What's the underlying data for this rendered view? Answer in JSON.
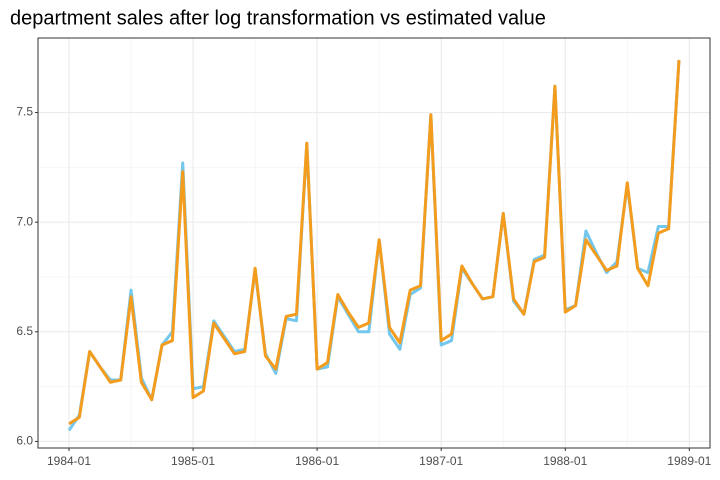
{
  "chart_data": {
    "type": "line",
    "title": "department sales after log transformation vs estimated value",
    "x": [
      "1984-01",
      "1984-02",
      "1984-03",
      "1984-04",
      "1984-05",
      "1984-06",
      "1984-07",
      "1984-08",
      "1984-09",
      "1984-10",
      "1984-11",
      "1984-12",
      "1985-01",
      "1985-02",
      "1985-03",
      "1985-04",
      "1985-05",
      "1985-06",
      "1985-07",
      "1985-08",
      "1985-09",
      "1985-10",
      "1985-11",
      "1985-12",
      "1986-01",
      "1986-02",
      "1986-03",
      "1986-04",
      "1986-05",
      "1986-06",
      "1986-07",
      "1986-08",
      "1986-09",
      "1986-10",
      "1986-11",
      "1986-12",
      "1987-01",
      "1987-02",
      "1987-03",
      "1987-04",
      "1987-05",
      "1987-06",
      "1987-07",
      "1987-08",
      "1987-09",
      "1987-10",
      "1987-11",
      "1987-12",
      "1988-01",
      "1988-02",
      "1988-03",
      "1988-04",
      "1988-05",
      "1988-06",
      "1988-07",
      "1988-08",
      "1988-09",
      "1988-10",
      "1988-11",
      "1988-12"
    ],
    "series": [
      {
        "color": "#74c7ec",
        "values": [
          6.05,
          6.12,
          6.41,
          6.34,
          6.28,
          6.28,
          6.69,
          6.29,
          6.19,
          6.44,
          6.5,
          7.27,
          6.24,
          6.25,
          6.55,
          6.48,
          6.41,
          6.42,
          6.78,
          6.4,
          6.31,
          6.56,
          6.55,
          7.36,
          6.33,
          6.34,
          6.66,
          6.58,
          6.5,
          6.5,
          6.92,
          6.49,
          6.42,
          6.67,
          6.7,
          7.49,
          6.44,
          6.46,
          6.79,
          6.72,
          6.65,
          6.66,
          7.04,
          6.64,
          6.58,
          6.83,
          6.85,
          7.62,
          6.6,
          6.62,
          6.96,
          6.86,
          6.77,
          6.82,
          7.17,
          6.79,
          6.77,
          6.98,
          6.98,
          7.74
        ]
      },
      {
        "color": "#f39c1e",
        "values": [
          6.08,
          6.11,
          6.41,
          6.34,
          6.27,
          6.28,
          6.66,
          6.27,
          6.19,
          6.44,
          6.46,
          7.23,
          6.2,
          6.23,
          6.54,
          6.47,
          6.4,
          6.41,
          6.79,
          6.39,
          6.33,
          6.57,
          6.58,
          7.36,
          6.33,
          6.36,
          6.67,
          6.59,
          6.52,
          6.54,
          6.92,
          6.52,
          6.45,
          6.69,
          6.71,
          7.49,
          6.46,
          6.49,
          6.8,
          6.72,
          6.65,
          6.66,
          7.04,
          6.65,
          6.58,
          6.82,
          6.84,
          7.62,
          6.59,
          6.62,
          6.92,
          6.85,
          6.78,
          6.8,
          7.18,
          6.79,
          6.71,
          6.95,
          6.97,
          7.74
        ]
      }
    ],
    "xlim": [
      "1983-10",
      "1989-03"
    ],
    "xticks": [
      "1984-01",
      "1985-01",
      "1986-01",
      "1987-01",
      "1988-01",
      "1989-01"
    ],
    "ylim": [
      5.97,
      7.84
    ],
    "yticks": [
      {
        "value": 6,
        "label": "6.0"
      },
      6.5,
      {
        "value": 7,
        "label": "7.0"
      },
      7.5
    ],
    "grid": true
  }
}
